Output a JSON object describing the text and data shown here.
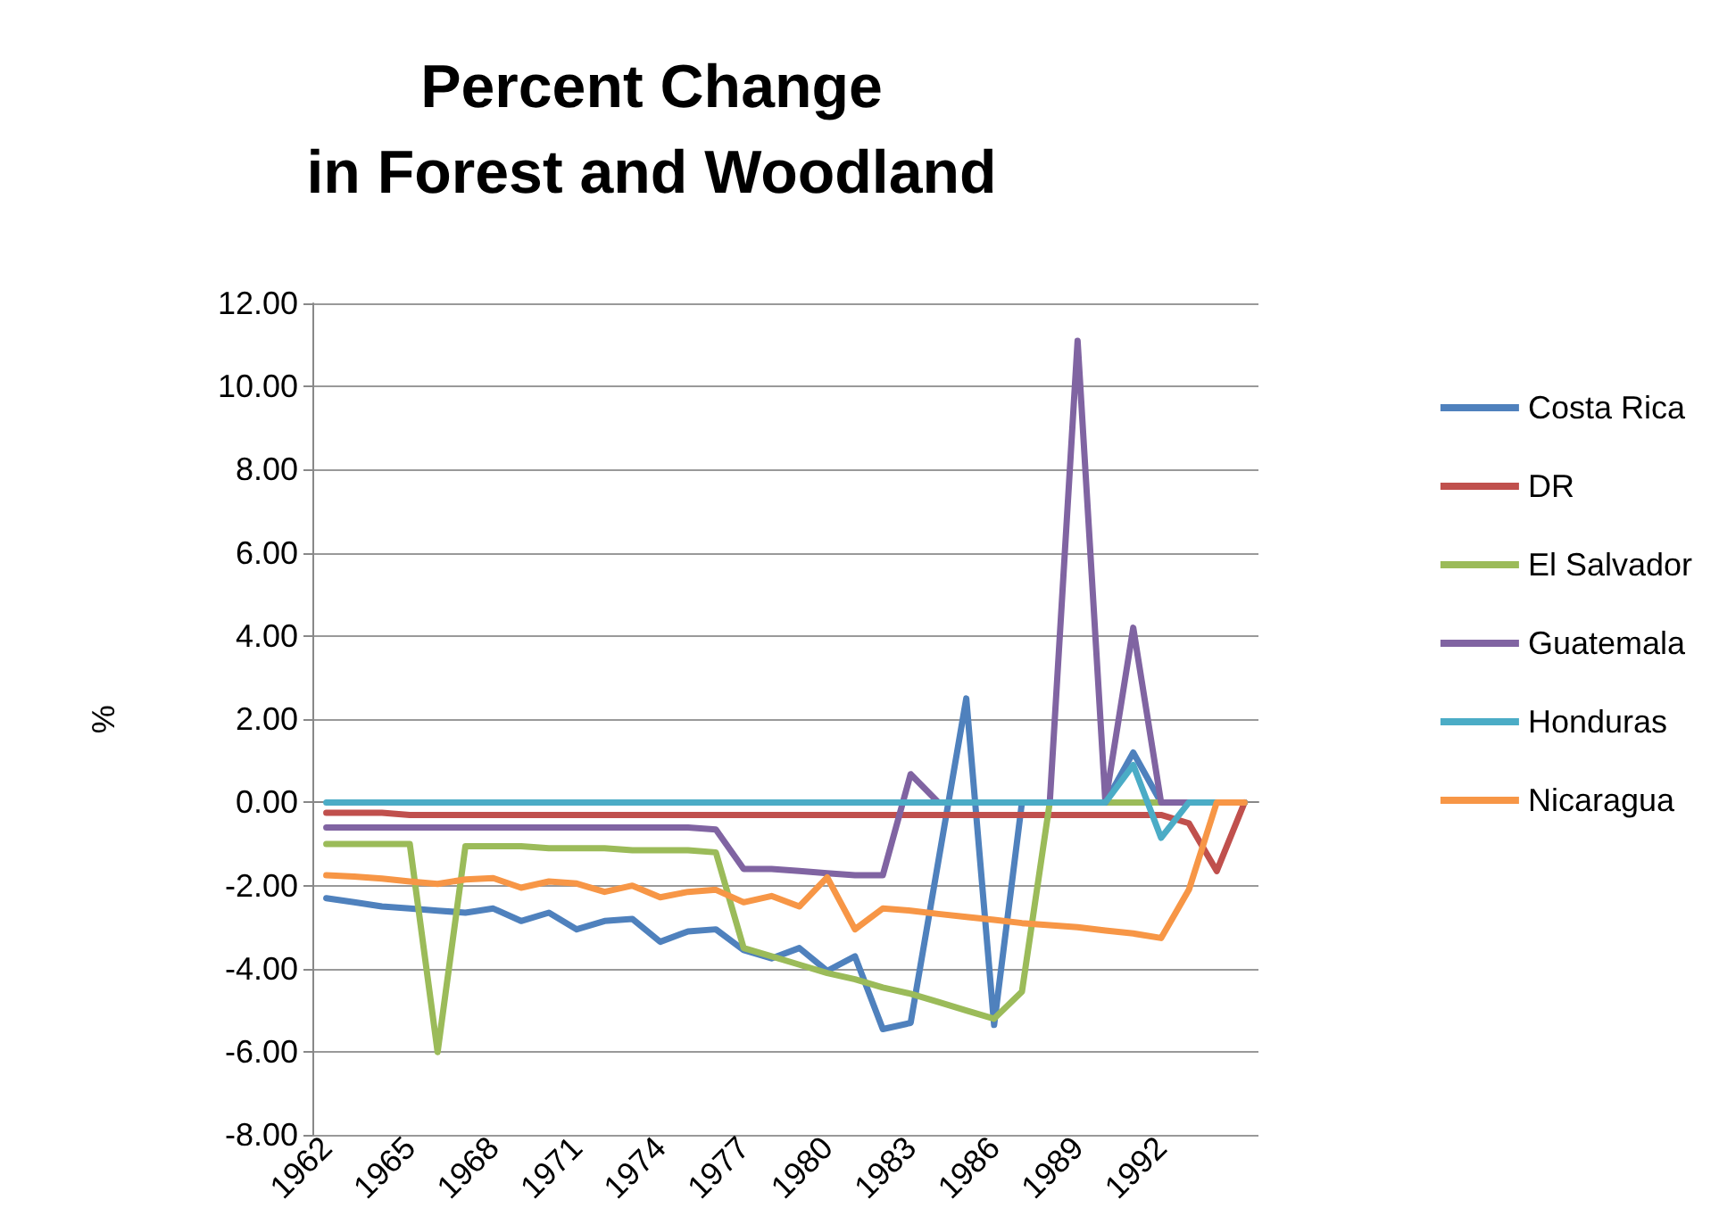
{
  "chart_data": {
    "type": "line",
    "title": "Percent Change\nin Forest and Woodland",
    "ylabel": "%",
    "categories": [
      "1962",
      null,
      null,
      "1965",
      null,
      null,
      "1968",
      null,
      null,
      "1971",
      null,
      null,
      "1974",
      null,
      null,
      "1977",
      null,
      null,
      "1980",
      null,
      null,
      "1983",
      null,
      null,
      "1986",
      null,
      null,
      "1989",
      null,
      null,
      "1992",
      null,
      null,
      null
    ],
    "series": [
      {
        "name": "Costa Rica",
        "color": "#4f81bd",
        "values": [
          -2.3,
          -2.4,
          -2.5,
          -2.55,
          -2.6,
          -2.65,
          -2.55,
          -2.85,
          -2.65,
          -3.05,
          -2.85,
          -2.8,
          -3.35,
          -3.1,
          -3.05,
          -3.55,
          -3.75,
          -3.5,
          -4.05,
          -3.7,
          -5.45,
          -5.3,
          -1.4,
          2.5,
          -5.35,
          0,
          0,
          0,
          0,
          1.2,
          0,
          0,
          0,
          0
        ]
      },
      {
        "name": "DR",
        "color": "#c0504d",
        "values": [
          -0.25,
          -0.25,
          -0.25,
          -0.3,
          -0.3,
          -0.3,
          -0.3,
          -0.3,
          -0.3,
          -0.3,
          -0.3,
          -0.3,
          -0.3,
          -0.3,
          -0.3,
          -0.3,
          -0.3,
          -0.3,
          -0.3,
          -0.3,
          -0.3,
          -0.3,
          -0.3,
          -0.3,
          -0.3,
          -0.3,
          -0.3,
          -0.3,
          -0.3,
          -0.3,
          -0.3,
          -0.5,
          -1.65,
          0
        ]
      },
      {
        "name": "El Salvador",
        "color": "#9bbb59",
        "values": [
          -1.0,
          -1.0,
          -1.0,
          -1.0,
          -6.0,
          -1.05,
          -1.05,
          -1.05,
          -1.1,
          -1.1,
          -1.1,
          -1.15,
          -1.15,
          -1.15,
          -1.2,
          -3.5,
          -3.7,
          -3.9,
          -4.1,
          -4.25,
          -4.45,
          -4.6,
          -4.8,
          -5.0,
          -5.2,
          -4.55,
          0,
          0,
          0,
          0,
          0,
          0,
          0,
          0
        ]
      },
      {
        "name": "Guatemala",
        "color": "#8064a2",
        "values": [
          -0.6,
          -0.6,
          -0.6,
          -0.6,
          -0.6,
          -0.6,
          -0.6,
          -0.6,
          -0.6,
          -0.6,
          -0.6,
          -0.6,
          -0.6,
          -0.6,
          -0.65,
          -1.6,
          -1.6,
          -1.65,
          -1.7,
          -1.75,
          -1.75,
          0.68,
          0,
          0,
          0,
          0,
          0,
          11.1,
          0,
          4.2,
          0,
          0,
          0,
          0
        ]
      },
      {
        "name": "Honduras",
        "color": "#4bacc6",
        "values": [
          0,
          0,
          0,
          0,
          0,
          0,
          0,
          0,
          0,
          0,
          0,
          0,
          0,
          0,
          0,
          0,
          0,
          0,
          0,
          0,
          0,
          0,
          0,
          0,
          0,
          0,
          0,
          0,
          0,
          0.9,
          -0.85,
          0,
          0,
          0
        ]
      },
      {
        "name": "Nicaragua",
        "color": "#f79646",
        "values": [
          -1.75,
          -1.78,
          -1.83,
          -1.9,
          -1.96,
          -1.85,
          -1.82,
          -2.05,
          -1.9,
          -1.95,
          -2.15,
          -2.0,
          -2.28,
          -2.15,
          -2.1,
          -2.4,
          -2.25,
          -2.5,
          -1.8,
          -3.05,
          -2.55,
          -2.6,
          -2.68,
          -2.75,
          -2.82,
          -2.9,
          -2.95,
          -3.0,
          -3.08,
          -3.15,
          -3.26,
          -2.1,
          0,
          0
        ]
      }
    ],
    "ylim": [
      -8,
      12
    ],
    "yticks": [
      {
        "value": -8,
        "label": "-8.00"
      },
      {
        "value": -6,
        "label": "-6.00"
      },
      {
        "value": -4,
        "label": "-4.00"
      },
      {
        "value": -2,
        "label": "-2.00"
      },
      {
        "value": 0,
        "label": "0.00"
      },
      {
        "value": 2,
        "label": "2.00"
      },
      {
        "value": 4,
        "label": "4.00"
      },
      {
        "value": 6,
        "label": "6.00"
      },
      {
        "value": 8,
        "label": "8.00"
      },
      {
        "value": 10,
        "label": "10.00"
      },
      {
        "value": 12,
        "label": "12.00"
      }
    ],
    "grid": "y",
    "legend": "right",
    "marker": "none",
    "line_style": "solid"
  }
}
